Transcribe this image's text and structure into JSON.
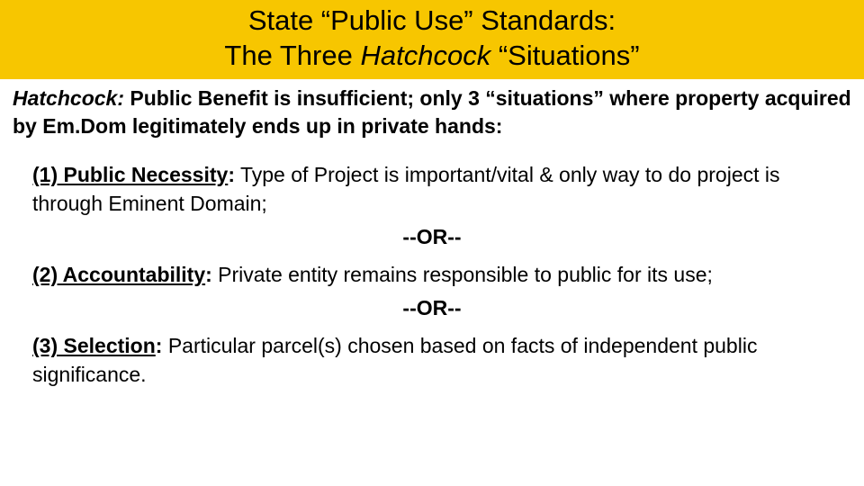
{
  "colors": {
    "title_band_bg": "#f7c600",
    "text": "#000000",
    "background": "#ffffff"
  },
  "title": {
    "line1_pre": "State “Public Use” Standards:",
    "line2_pre": "The Three ",
    "line2_italic": "Hatchcock",
    "line2_post": " “Situations”"
  },
  "intro": {
    "case_name": "Hatchcock:",
    "rest": "  Public Benefit is insufficient; only 3 “situations” where property acquired by Em.Dom legitimately ends up in private hands:"
  },
  "situations": [
    {
      "label": "(1) Public Necessity",
      "text": "   Type of Project is important/vital & only way to do project is through Eminent Domain;"
    },
    {
      "label": "(2) Accountability",
      "text": " Private entity remains responsible to public for its use;"
    },
    {
      "label": "(3) Selection",
      "text": "  Particular parcel(s) chosen based on facts of independent public significance."
    }
  ],
  "separator": "--OR--"
}
